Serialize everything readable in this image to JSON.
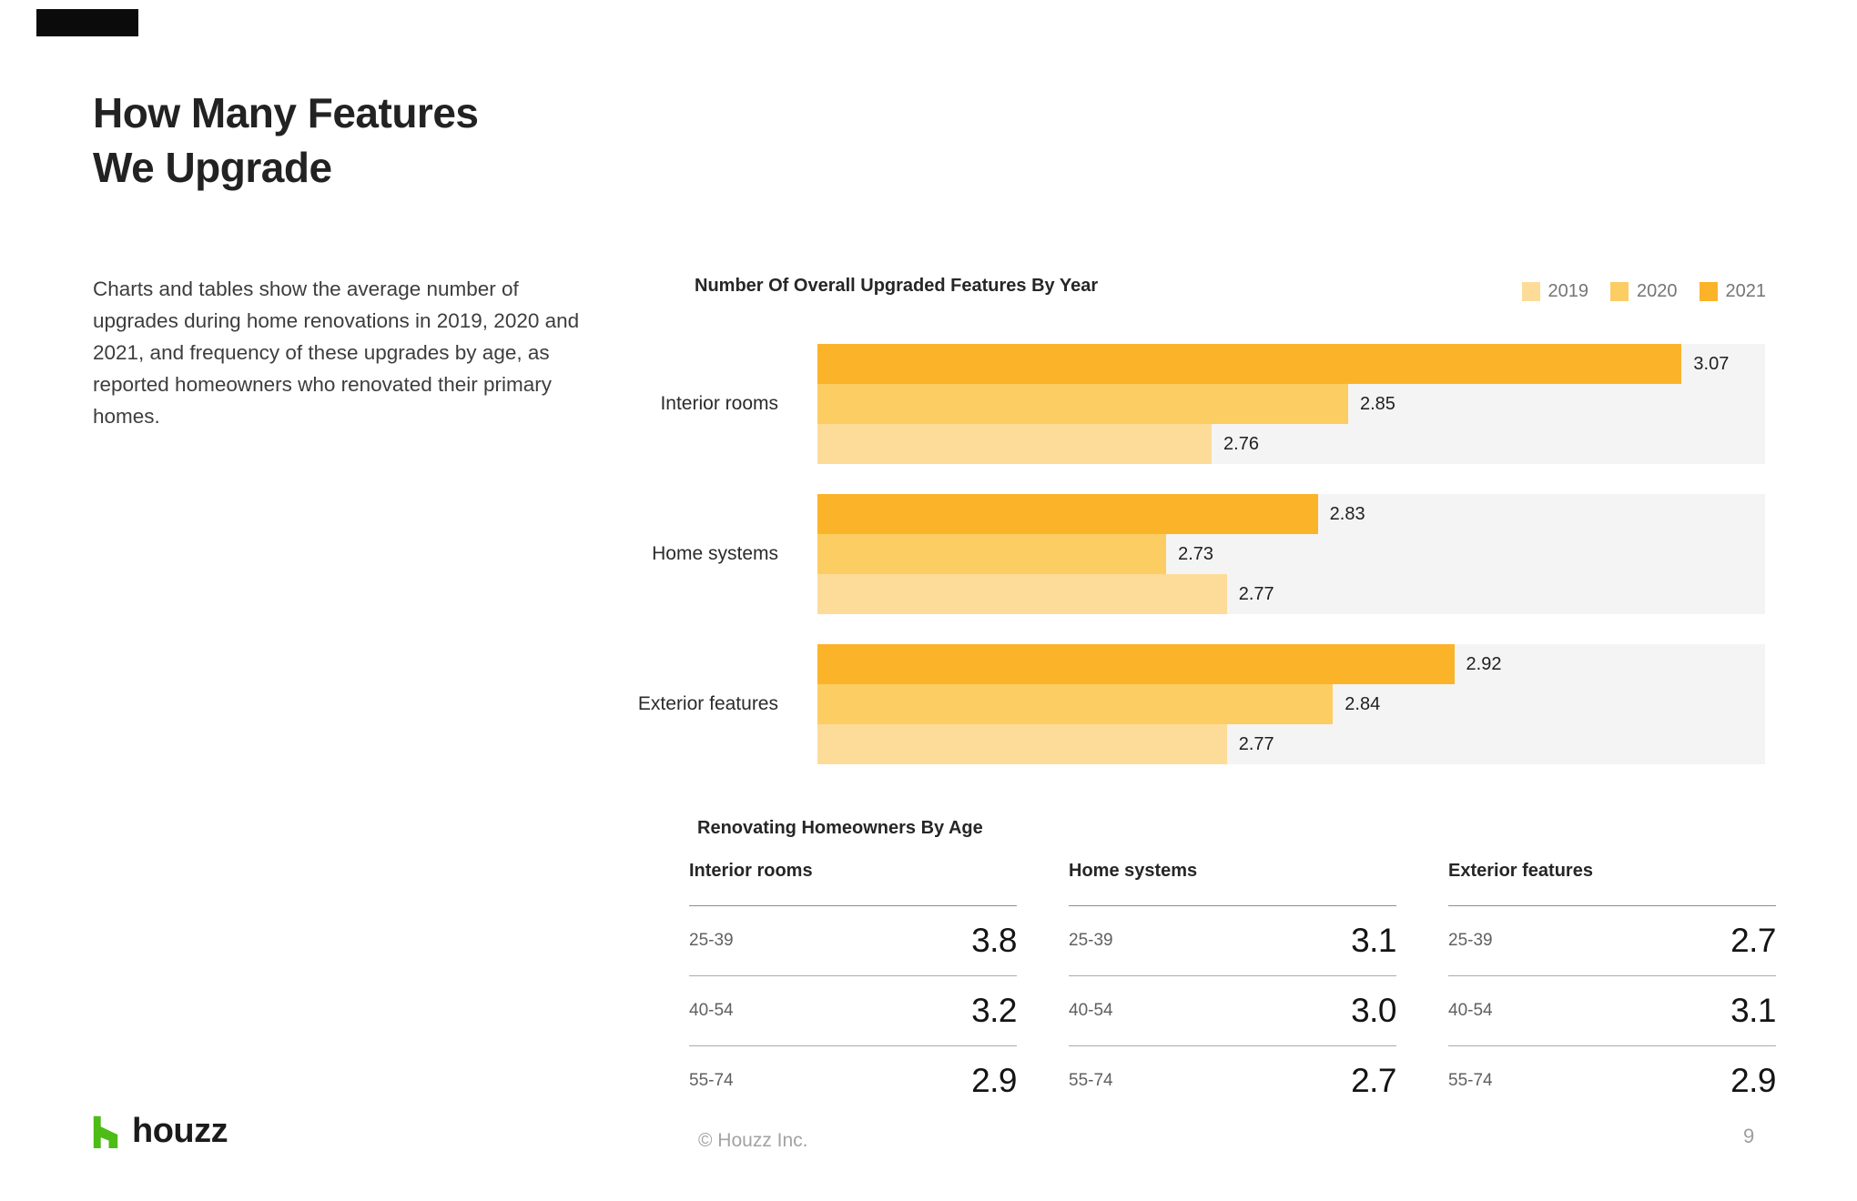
{
  "page": {
    "title_line1": "How Many Features",
    "title_line2": "We Upgrade",
    "intro": "Charts and tables show the average number of upgrades during home renovations in 2019, 2020 and 2021, and frequency of these upgrades by age, as reported homeowners who renovated their primary homes.",
    "footer": {
      "logo_text": "houzz",
      "copyright": "© Houzz Inc.",
      "page_number": "9"
    }
  },
  "colors": {
    "houzz_green": "#4DBC15",
    "bar_track": "#F4F4F4"
  },
  "chart_data": [
    {
      "type": "bar",
      "orientation": "horizontal",
      "title": "Number Of Overall Upgraded Features By Year",
      "categories": [
        "Interior rooms",
        "Home systems",
        "Exterior features"
      ],
      "series": [
        {
          "name": "2021",
          "color": "#FBB32A",
          "values": [
            3.07,
            2.83,
            2.92
          ]
        },
        {
          "name": "2020",
          "color": "#FCCD63",
          "values": [
            2.85,
            2.73,
            2.84
          ]
        },
        {
          "name": "2019",
          "color": "#FDDC99",
          "values": [
            2.76,
            2.77,
            2.77
          ]
        }
      ],
      "bar_order_top_to_bottom": [
        "2021",
        "2020",
        "2019"
      ],
      "value_axis": {
        "hidden": true,
        "min": 2.5,
        "max": 3.125
      },
      "grid": false,
      "legend_position": "top-right",
      "legend": [
        {
          "label": "2019",
          "color": "#FDDC99"
        },
        {
          "label": "2020",
          "color": "#FCCD63"
        },
        {
          "label": "2021",
          "color": "#FBB32A"
        }
      ],
      "colors_by_year": {
        "2021": "#FBB32A",
        "2020": "#FCCD63",
        "2019": "#FDDC99"
      },
      "groups": [
        {
          "label": "Interior rooms",
          "bars": [
            {
              "year": "2021",
              "value": 3.07,
              "display": "3.07"
            },
            {
              "year": "2020",
              "value": 2.85,
              "display": "2.85"
            },
            {
              "year": "2019",
              "value": 2.76,
              "display": "2.76"
            }
          ]
        },
        {
          "label": "Home systems",
          "bars": [
            {
              "year": "2021",
              "value": 2.83,
              "display": "2.83"
            },
            {
              "year": "2020",
              "value": 2.73,
              "display": "2.73"
            },
            {
              "year": "2019",
              "value": 2.77,
              "display": "2.77"
            }
          ]
        },
        {
          "label": "Exterior features",
          "bars": [
            {
              "year": "2021",
              "value": 2.92,
              "display": "2.92"
            },
            {
              "year": "2020",
              "value": 2.84,
              "display": "2.84"
            },
            {
              "year": "2019",
              "value": 2.77,
              "display": "2.77"
            }
          ]
        }
      ]
    },
    {
      "type": "table",
      "title": "Renovating Homeowners By Age",
      "columns": [
        {
          "header": "Interior rooms",
          "rows": [
            {
              "age": "25-39",
              "value": "3.8"
            },
            {
              "age": "40-54",
              "value": "3.2"
            },
            {
              "age": "55-74",
              "value": "2.9"
            }
          ]
        },
        {
          "header": "Home systems",
          "rows": [
            {
              "age": "25-39",
              "value": "3.1"
            },
            {
              "age": "40-54",
              "value": "3.0"
            },
            {
              "age": "55-74",
              "value": "2.7"
            }
          ]
        },
        {
          "header": "Exterior features",
          "rows": [
            {
              "age": "25-39",
              "value": "2.7"
            },
            {
              "age": "40-54",
              "value": "3.1"
            },
            {
              "age": "55-74",
              "value": "2.9"
            }
          ]
        }
      ]
    }
  ]
}
